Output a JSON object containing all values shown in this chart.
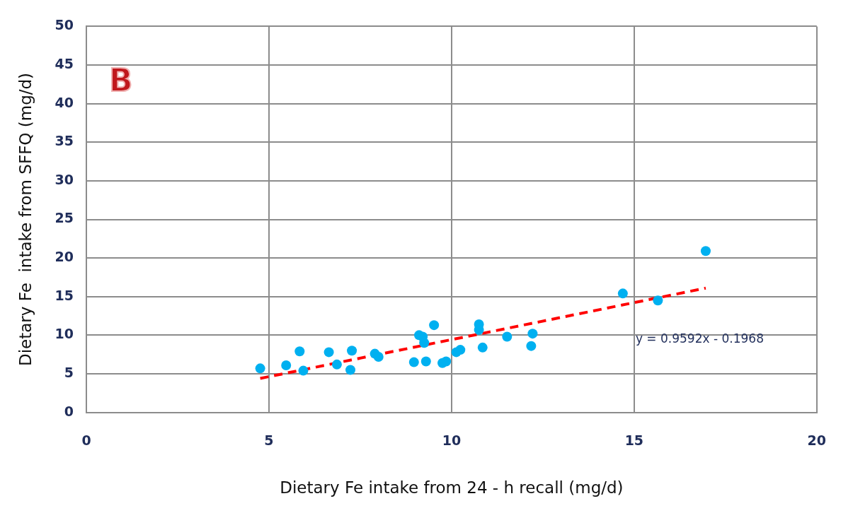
{
  "chart_data": {
    "type": "scatter",
    "xlabel": "Dietary Fe intake from 24 - h recall (mg/d)",
    "ylabel": "Dietary Fe  intake from SFFQ (mg/d)",
    "annotations": [
      "B",
      "y = 0.9592x - 0.1968"
    ],
    "xlim": [
      0,
      20
    ],
    "xticks": [
      0,
      5,
      10,
      15,
      20
    ],
    "ylim": [
      0,
      50
    ],
    "yticks": [
      0,
      5,
      10,
      15,
      20,
      25,
      30,
      35,
      40,
      45,
      50
    ],
    "grid": true,
    "legend": false,
    "marker": "circle",
    "series": [
      {
        "color": "#00b0f0",
        "x": [
          4.76,
          5.47,
          5.84,
          5.94,
          6.64,
          6.86,
          7.27,
          7.23,
          7.9,
          8.0,
          8.97,
          9.11,
          9.21,
          9.25,
          9.52,
          9.3,
          9.75,
          9.85,
          10.13,
          10.24,
          10.75,
          10.75,
          10.85,
          11.52,
          12.18,
          12.22,
          14.69,
          15.65,
          16.96
        ],
        "values": [
          5.7,
          6.1,
          7.9,
          5.4,
          7.8,
          6.2,
          8.0,
          5.5,
          7.6,
          7.2,
          6.5,
          10.0,
          9.8,
          9.0,
          11.3,
          6.6,
          6.4,
          6.6,
          7.8,
          8.1,
          11.4,
          10.7,
          8.4,
          9.8,
          8.6,
          10.2,
          15.4,
          14.5,
          20.9
        ]
      },
      {
        "type": "line",
        "color": "#ff0000",
        "line_style": "dashed",
        "marker": "none",
        "x": [
          4.76,
          16.96
        ],
        "values": [
          4.4,
          16.1
        ]
      }
    ]
  }
}
